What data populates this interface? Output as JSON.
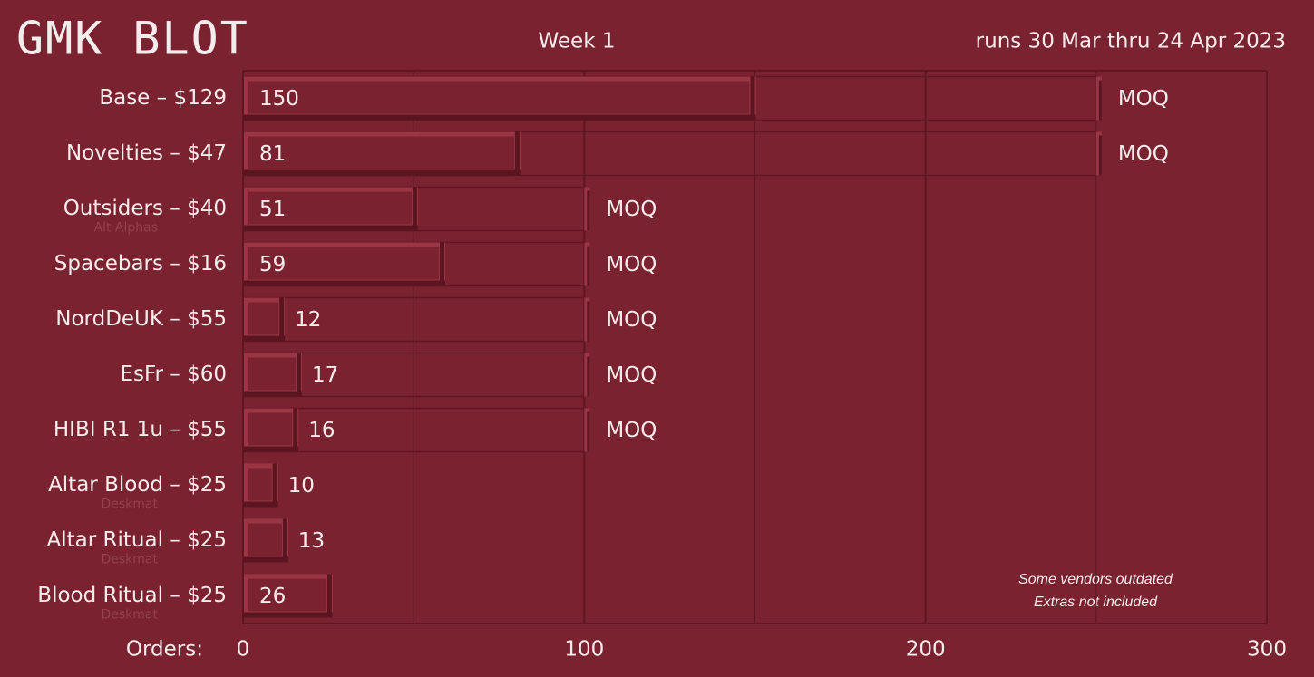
{
  "chart_data": {
    "type": "bar",
    "orientation": "horizontal",
    "title": "GMK BLOT",
    "subtitle": "Week 1",
    "date_range": "runs 30 Mar thru 24 Apr 2023",
    "x_label": "Orders:",
    "categories": [
      "Base – $129",
      "Novelties – $47",
      "Outsiders – $40",
      "Spacebars – $16",
      "NordDeUK – $55",
      "EsFr – $60",
      "HIBI R1 1u  – $55",
      "Altar Blood – $25",
      "Altar Ritual – $25",
      "Blood Ritual – $25"
    ],
    "sublabels": [
      null,
      null,
      "Alt Alphas",
      null,
      null,
      null,
      null,
      "Deskmat",
      "Deskmat",
      "Deskmat"
    ],
    "values": [
      150,
      81,
      51,
      59,
      12,
      17,
      16,
      10,
      13,
      26
    ],
    "moq": [
      250,
      250,
      100,
      100,
      100,
      100,
      100,
      null,
      null,
      null
    ],
    "moq_label": "MOQ",
    "color": "#9c3543",
    "xlim": [
      0,
      300
    ],
    "xticks": [
      0,
      100,
      200,
      300
    ],
    "minor_xticks": [
      50,
      150,
      250
    ],
    "grid": true,
    "notes": [
      "Some vendors outdated",
      "Extras not included"
    ]
  }
}
